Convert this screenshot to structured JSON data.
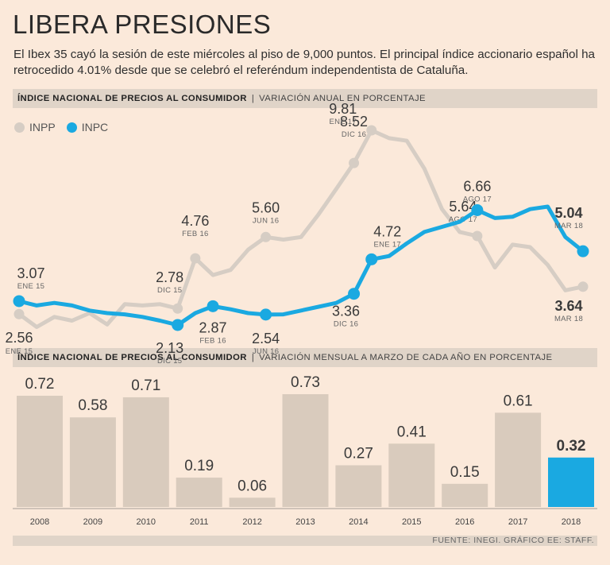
{
  "title": "LIBERA PRESIONES",
  "subtitle": "El Ibex 35 cayó la sesión de este miércoles al piso de 9,000 puntos. El principal índice accionario español ha retrocedido 4.01% desde que se celebró el referéndum independentista de Cataluña.",
  "section1": {
    "bold": "ÍNDICE NACIONAL DE PRECIOS AL CONSUMIDOR",
    "sep": "|",
    "light": "VARIACIÓN ANUAL EN PORCENTAJE"
  },
  "section2": {
    "bold": "ÍNDICE NACIONAL DE PRECIOS AL CONSUMIDOR",
    "sep": "|",
    "light": "VARIACIÓN MENSUAL A MARZO DE CADA AÑO EN PORCENTAJE"
  },
  "legend": {
    "inpp": "INPP",
    "inpc": "INPC"
  },
  "colors": {
    "inpp": "#d6cdc4",
    "inpc": "#1aa9e1",
    "bar": "#d9cbbd",
    "highlight": "#1aa9e1"
  },
  "source": "FUENTE: INEGI.  GRÁFICO EE: STAFF.",
  "chart_data": [
    {
      "type": "line",
      "title": "VARIACIÓN ANUAL EN PORCENTAJE",
      "series": [
        {
          "name": "INPP",
          "values": [
            2.56,
            2.05,
            2.45,
            2.3,
            2.6,
            2.15,
            2.95,
            2.9,
            2.95,
            2.78,
            4.76,
            4.1,
            4.3,
            5.1,
            5.6,
            5.5,
            5.6,
            6.5,
            7.5,
            8.52,
            9.81,
            9.5,
            9.4,
            8.3,
            6.7,
            5.8,
            5.64,
            4.4,
            5.3,
            5.2,
            4.5,
            3.5,
            3.64
          ],
          "annotations": [
            {
              "index": 0,
              "value": "2.56",
              "date": "ENE 15"
            },
            {
              "index": 9,
              "value": "2.78",
              "date": "DIC 15"
            },
            {
              "index": 10,
              "value": "4.76",
              "date": "FEB 16"
            },
            {
              "index": 14,
              "value": "5.60",
              "date": "JUN 16"
            },
            {
              "index": 19,
              "value": "8.52",
              "date": "DIC 16"
            },
            {
              "index": 20,
              "value": "9.81",
              "date": "ENE 17"
            },
            {
              "index": 26,
              "value": "5.64",
              "date": "AGO 17"
            },
            {
              "index": 32,
              "value": "3.64",
              "date": "MAR 18"
            }
          ]
        },
        {
          "name": "INPC",
          "values": [
            3.07,
            2.9,
            3.0,
            2.9,
            2.7,
            2.6,
            2.55,
            2.45,
            2.3,
            2.13,
            2.6,
            2.87,
            2.75,
            2.6,
            2.54,
            2.55,
            2.7,
            2.85,
            3.0,
            3.36,
            4.72,
            4.85,
            5.35,
            5.8,
            6.0,
            6.2,
            6.66,
            6.35,
            6.4,
            6.7,
            6.8,
            5.6,
            5.04
          ],
          "annotations": [
            {
              "index": 0,
              "value": "3.07",
              "date": "ENE 15"
            },
            {
              "index": 9,
              "value": "2.13",
              "date": "DIC 15"
            },
            {
              "index": 11,
              "value": "2.87",
              "date": "FEB 16"
            },
            {
              "index": 14,
              "value": "2.54",
              "date": "JUN 16"
            },
            {
              "index": 19,
              "value": "3.36",
              "date": "DIC 16"
            },
            {
              "index": 20,
              "value": "4.72",
              "date": "ENE 17"
            },
            {
              "index": 26,
              "value": "6.66",
              "date": "AGO 17"
            },
            {
              "index": 32,
              "value": "5.04",
              "date": "MAR 18"
            }
          ]
        }
      ],
      "ylim": [
        1.0,
        10.5
      ]
    },
    {
      "type": "bar",
      "title": "VARIACIÓN MENSUAL A MARZO DE CADA AÑO EN PORCENTAJE",
      "categories": [
        "2008",
        "2009",
        "2010",
        "2011",
        "2012",
        "2013",
        "2014",
        "2015",
        "2016",
        "2017",
        "2018"
      ],
      "values": [
        0.72,
        0.58,
        0.71,
        0.19,
        0.06,
        0.73,
        0.27,
        0.41,
        0.15,
        0.61,
        0.32
      ],
      "labels": [
        "0.72",
        "0.58",
        "0.71",
        "0.19",
        "0.06",
        "0.73",
        "0.27",
        "0.41",
        "0.15",
        "0.61",
        "0.32"
      ],
      "highlight_index": 10,
      "ylim": [
        0,
        0.75
      ]
    }
  ]
}
